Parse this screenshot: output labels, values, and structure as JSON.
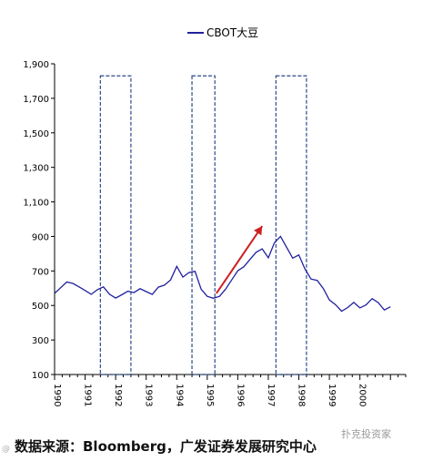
{
  "chart_data": {
    "type": "line",
    "title": "",
    "xlabel": "",
    "ylabel": "",
    "ylim": [
      100,
      1900
    ],
    "yticks": [
      100,
      300,
      500,
      700,
      900,
      1100,
      1300,
      1500,
      1700,
      1900
    ],
    "ytick_labels": [
      "100",
      "300",
      "500",
      "700",
      "900",
      "1,100",
      "1,300",
      "1,500",
      "1,700",
      "1,900"
    ],
    "xlim": [
      1990,
      2001.5
    ],
    "xtick_labels": [
      {
        "x": 1990.0,
        "label": "1990"
      },
      {
        "x": 1991.0,
        "label": "1991"
      },
      {
        "x": 1992.0,
        "label": "1992"
      },
      {
        "x": 1993.0,
        "label": "1993"
      },
      {
        "x": 1994.0,
        "label": "1994"
      },
      {
        "x": 1995.0,
        "label": "1995"
      },
      {
        "x": 1996.0,
        "label": "1996"
      },
      {
        "x": 1997.0,
        "label": "1997"
      },
      {
        "x": 1998.0,
        "label": "1998"
      },
      {
        "x": 1999.0,
        "label": "1999"
      },
      {
        "x": 2000.0,
        "label": "2000"
      }
    ],
    "legend_position": "top-center",
    "series": [
      {
        "name": "CBOT大豆",
        "color": "#2020a0",
        "x": [
          1990.0,
          1990.2,
          1990.4,
          1990.6,
          1990.8,
          1991.0,
          1991.2,
          1991.4,
          1991.6,
          1991.8,
          1992.0,
          1992.2,
          1992.4,
          1992.6,
          1992.8,
          1993.0,
          1993.2,
          1993.4,
          1993.6,
          1993.8,
          1994.0,
          1994.2,
          1994.4,
          1994.6,
          1994.8,
          1995.0,
          1995.2,
          1995.4,
          1995.6,
          1995.8,
          1996.0,
          1996.2,
          1996.4,
          1996.6,
          1996.8,
          1997.0,
          1997.2,
          1997.4,
          1997.6,
          1997.8,
          1998.0,
          1998.2,
          1998.4,
          1998.6,
          1998.8,
          1999.0,
          1999.2,
          1999.4,
          1999.6,
          1999.8,
          2000.0,
          2000.2,
          2000.4,
          2000.6,
          2000.8,
          2001.0
        ],
        "values": [
          570,
          600,
          630,
          620,
          600,
          580,
          560,
          590,
          610,
          570,
          550,
          570,
          590,
          580,
          600,
          580,
          560,
          600,
          610,
          640,
          720,
          660,
          690,
          700,
          600,
          560,
          550,
          560,
          600,
          650,
          700,
          720,
          760,
          800,
          820,
          770,
          860,
          900,
          840,
          780,
          800,
          720,
          660,
          650,
          600,
          530,
          500,
          460,
          480,
          510,
          480,
          500,
          540,
          520,
          480,
          500
        ]
      }
    ],
    "shaded_periods": [
      {
        "x_start": 1991.5,
        "x_end": 1992.5,
        "y_top": 1830
      },
      {
        "x_start": 1994.5,
        "x_end": 1995.25,
        "y_top": 1830
      },
      {
        "x_start": 1997.25,
        "x_end": 1998.25,
        "y_top": 1830
      }
    ],
    "annotations": [
      {
        "type": "arrow",
        "color": "#cc2020",
        "from": [
          1995.3,
          570
        ],
        "to": [
          1996.8,
          960
        ]
      }
    ],
    "grid": false
  },
  "source_text": "数据来源：Bloomberg，广发证券发展研究中心",
  "watermark_text": "扑克投资家",
  "watermark_left": "@"
}
